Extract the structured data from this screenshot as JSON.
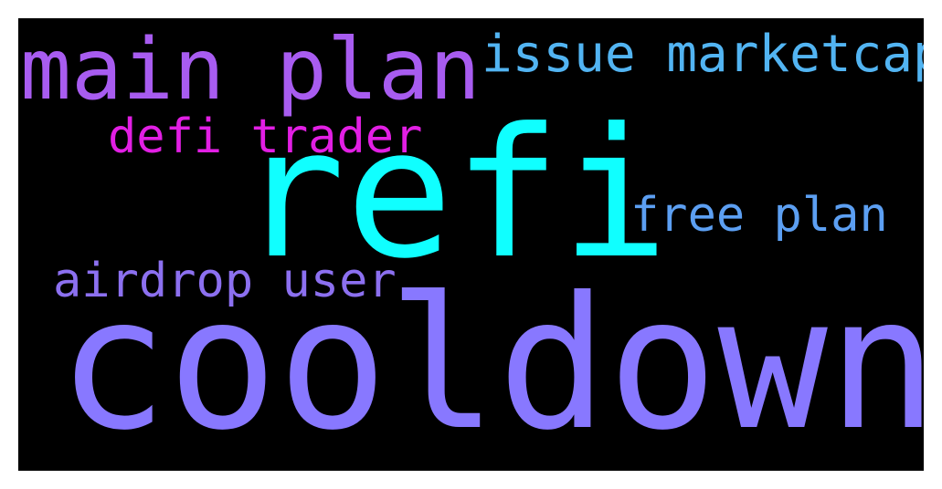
{
  "wordcloud": {
    "background": "#000000",
    "words": [
      {
        "text": "cooldown",
        "color": "#8878ff"
      },
      {
        "text": "refi",
        "color": "#10ffff"
      },
      {
        "text": "main plan",
        "color": "#a85cf0"
      },
      {
        "text": "issue marketcap",
        "color": "#52b4f2"
      },
      {
        "text": "defi trader",
        "color": "#e21fe4"
      },
      {
        "text": "free plan",
        "color": "#5c9ff2"
      },
      {
        "text": "airdrop user",
        "color": "#8c70f0"
      }
    ]
  }
}
